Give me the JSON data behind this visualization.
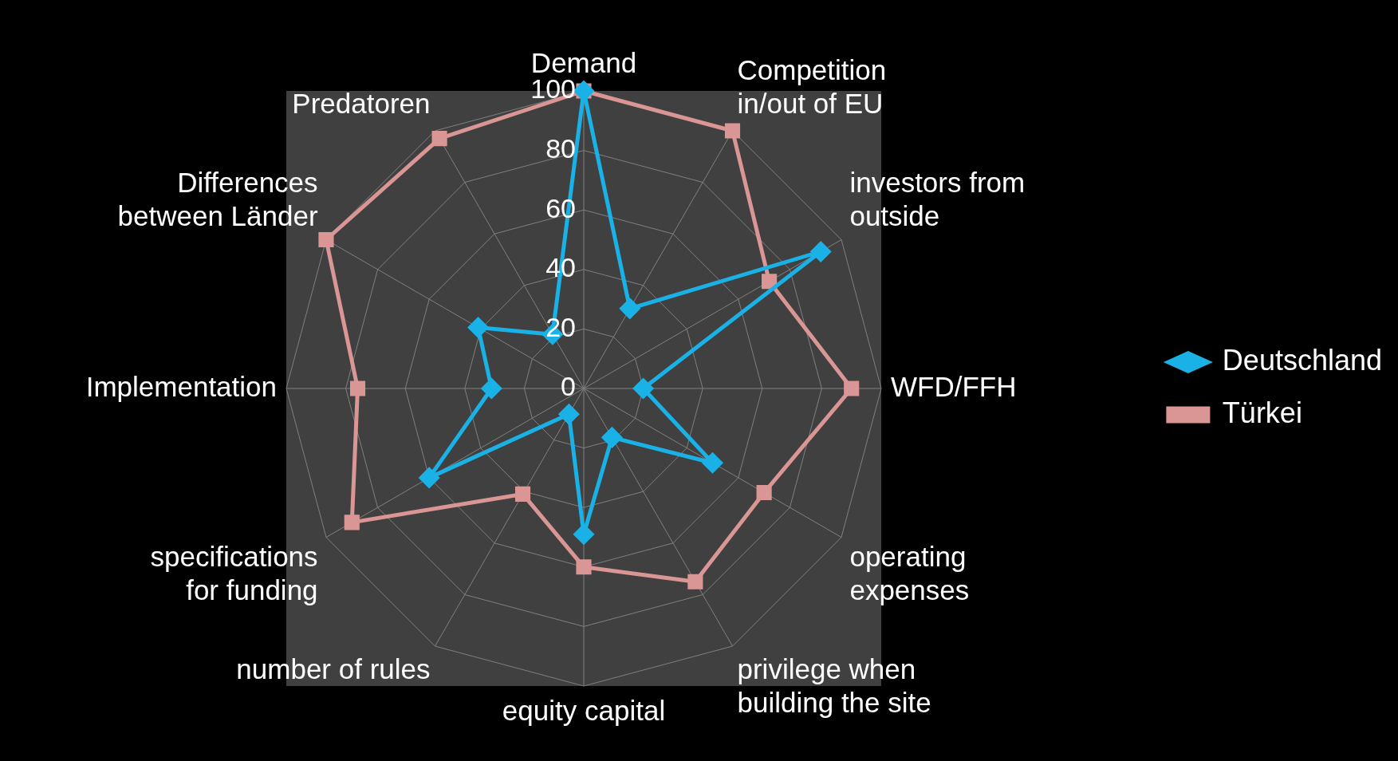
{
  "chart_data": {
    "type": "radar",
    "categories": [
      "Demand",
      "Competition in/out of EU",
      "investors from outside",
      "WFD/FFH",
      "operating expenses",
      "privilege when building the site",
      "equity capital",
      "number of rules",
      "specifications for funding",
      "Implementation",
      "Differences between Länder",
      "Predatoren"
    ],
    "series": [
      {
        "name": "Deutschland",
        "color": "#1ab2e6",
        "marker": "diamond",
        "values": [
          100,
          31,
          92,
          20,
          50,
          19,
          49,
          10,
          60,
          31,
          41,
          21
        ]
      },
      {
        "name": "Türkei",
        "color": "#d99694",
        "marker": "square",
        "values": [
          100,
          100,
          72,
          90,
          70,
          75,
          60,
          41,
          90,
          76,
          100,
          97
        ]
      }
    ],
    "ylim": [
      0,
      100
    ],
    "yticks": [
      0,
      20,
      40,
      60,
      80,
      100
    ],
    "grid": true,
    "legend": "right"
  }
}
